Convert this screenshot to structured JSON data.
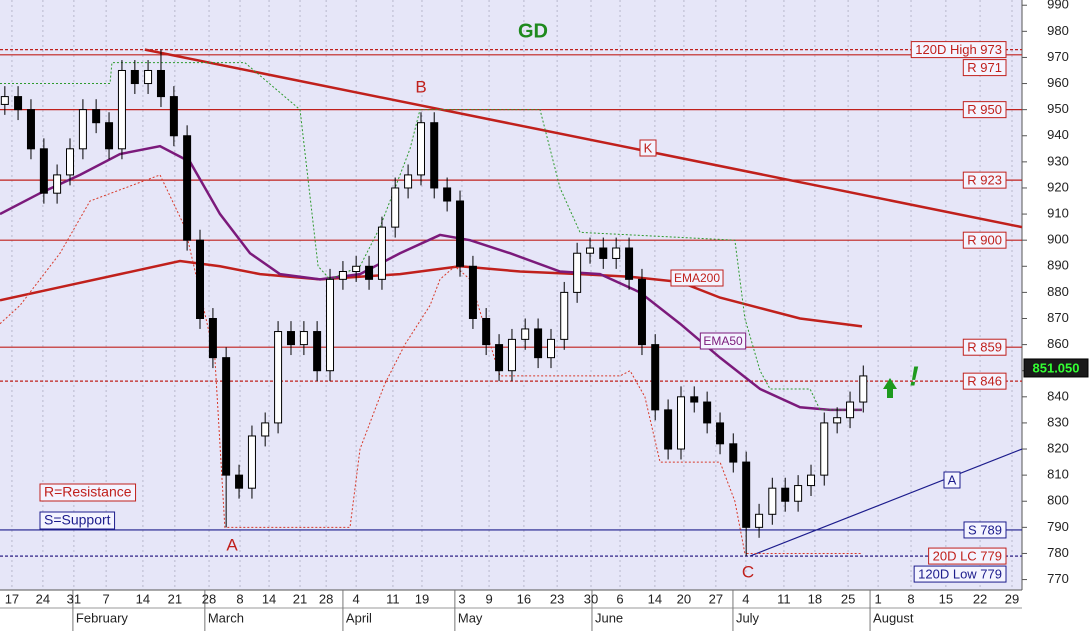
{
  "chart_data": {
    "type": "candlestick",
    "title": "GD",
    "xlim": [
      0,
      31.68
    ],
    "ylim": [
      766,
      992
    ],
    "yticks": [
      770,
      780,
      790,
      800,
      810,
      820,
      830,
      840,
      850,
      860,
      870,
      880,
      890,
      900,
      910,
      920,
      930,
      940,
      950,
      960,
      970,
      980,
      990
    ],
    "xticks": [
      {
        "value": 0.37,
        "label": "17"
      },
      {
        "value": 1.33,
        "label": "24"
      },
      {
        "value": 2.29,
        "label": "31"
      },
      {
        "value": 3.29,
        "label": "7"
      },
      {
        "value": 4.43,
        "label": "14"
      },
      {
        "value": 5.42,
        "label": "21"
      },
      {
        "value": 6.48,
        "label": "28"
      },
      {
        "value": 7.44,
        "label": "8"
      },
      {
        "value": 8.34,
        "label": "14"
      },
      {
        "value": 9.3,
        "label": "21"
      },
      {
        "value": 10.11,
        "label": "28"
      },
      {
        "value": 11.04,
        "label": "4"
      },
      {
        "value": 12.18,
        "label": "11"
      },
      {
        "value": 13.08,
        "label": "19"
      },
      {
        "value": 14.32,
        "label": "3"
      },
      {
        "value": 15.16,
        "label": "9"
      },
      {
        "value": 16.24,
        "label": "16"
      },
      {
        "value": 17.27,
        "label": "23"
      },
      {
        "value": 18.32,
        "label": "30"
      },
      {
        "value": 19.22,
        "label": "6"
      },
      {
        "value": 20.3,
        "label": "14"
      },
      {
        "value": 21.2,
        "label": "20"
      },
      {
        "value": 22.19,
        "label": "27"
      },
      {
        "value": 23.12,
        "label": "4"
      },
      {
        "value": 24.3,
        "label": "11"
      },
      {
        "value": 25.26,
        "label": "18"
      },
      {
        "value": 26.29,
        "label": "25"
      },
      {
        "value": 27.22,
        "label": "1"
      },
      {
        "value": 28.24,
        "label": "8"
      },
      {
        "value": 29.32,
        "label": "15"
      },
      {
        "value": 30.38,
        "label": "22"
      },
      {
        "value": 31.37,
        "label": "29"
      }
    ],
    "months": [
      {
        "value": 2.26,
        "label": "February"
      },
      {
        "value": 6.35,
        "label": "March"
      },
      {
        "value": 10.63,
        "label": "April"
      },
      {
        "value": 14.1,
        "label": "May"
      },
      {
        "value": 18.35,
        "label": "June"
      },
      {
        "value": 22.72,
        "label": "July"
      },
      {
        "value": 26.97,
        "label": "August"
      }
    ],
    "grid": true,
    "up_color": "#ffffff",
    "down_color": "#000000",
    "x": [
      0.15,
      0.56,
      0.96,
      1.36,
      1.77,
      2.17,
      2.57,
      2.98,
      3.38,
      3.78,
      4.18,
      4.59,
      4.99,
      5.39,
      5.8,
      6.2,
      6.6,
      7.01,
      7.41,
      7.81,
      8.22,
      8.62,
      9.02,
      9.42,
      9.83,
      10.23,
      10.63,
      11.04,
      11.44,
      11.84,
      12.25,
      12.65,
      13.05,
      13.46,
      13.86,
      14.26,
      14.66,
      15.07,
      15.47,
      15.87,
      16.28,
      16.68,
      17.08,
      17.49,
      17.89,
      18.29,
      18.7,
      19.1,
      19.5,
      19.9,
      20.31,
      20.71,
      21.11,
      21.52,
      21.92,
      22.32,
      22.73,
      23.13,
      23.53,
      23.94,
      24.34,
      24.74,
      25.14,
      25.55,
      25.95,
      26.35,
      26.76
    ],
    "open": [
      952,
      955,
      950,
      935,
      918,
      925,
      935,
      950,
      945,
      935,
      965,
      960,
      965,
      955,
      940,
      900,
      870,
      855,
      810,
      805,
      825,
      830,
      865,
      860,
      865,
      850,
      885,
      888,
      890,
      885,
      905,
      920,
      925,
      945,
      920,
      915,
      890,
      870,
      860,
      850,
      862,
      866,
      855,
      862,
      880,
      895,
      897,
      893,
      897,
      885,
      860,
      835,
      820,
      840,
      838,
      830,
      822,
      815,
      790,
      795,
      805,
      800,
      806,
      810,
      830,
      832,
      838
    ],
    "high": [
      959,
      959,
      954,
      939,
      929,
      939,
      954,
      954,
      949,
      969,
      969,
      969,
      973,
      959,
      944,
      904,
      874,
      859,
      814,
      829,
      834,
      869,
      869,
      869,
      869,
      889,
      892,
      894,
      894,
      909,
      924,
      929,
      949,
      949,
      924,
      919,
      894,
      874,
      864,
      866,
      870,
      870,
      866,
      884,
      899,
      901,
      901,
      901,
      901,
      889,
      864,
      839,
      844,
      844,
      842,
      834,
      826,
      819,
      799,
      809,
      809,
      810,
      814,
      834,
      836,
      842,
      852
    ],
    "low": [
      948,
      946,
      931,
      914,
      914,
      921,
      931,
      941,
      931,
      931,
      956,
      956,
      951,
      936,
      896,
      866,
      851,
      790,
      801,
      801,
      821,
      826,
      856,
      856,
      846,
      846,
      881,
      884,
      881,
      881,
      901,
      916,
      921,
      916,
      911,
      886,
      866,
      856,
      846,
      846,
      858,
      851,
      851,
      858,
      876,
      891,
      889,
      889,
      881,
      856,
      831,
      816,
      816,
      834,
      826,
      818,
      811,
      779,
      786,
      791,
      796,
      796,
      802,
      806,
      826,
      828,
      834
    ],
    "close": [
      955,
      950,
      935,
      918,
      925,
      935,
      950,
      945,
      935,
      965,
      960,
      965,
      955,
      940,
      900,
      870,
      855,
      810,
      805,
      825,
      830,
      865,
      860,
      865,
      850,
      885,
      888,
      890,
      885,
      905,
      920,
      925,
      945,
      920,
      915,
      890,
      870,
      860,
      850,
      862,
      866,
      855,
      862,
      880,
      895,
      897,
      893,
      897,
      885,
      860,
      835,
      820,
      840,
      838,
      830,
      822,
      815,
      790,
      795,
      805,
      800,
      806,
      810,
      830,
      832,
      838,
      848
    ],
    "lines": [
      {
        "name": "EMA200",
        "color": "#c0201c",
        "dash": false,
        "x": [
          0,
          1.86,
          3.72,
          5.58,
          6.82,
          8.06,
          9.92,
          12.4,
          14.26,
          16.12,
          17.98,
          19.53,
          21.08,
          22.32,
          23.56,
          24.8,
          26.72
        ],
        "values": [
          877,
          882,
          887,
          892,
          890,
          887,
          885,
          887,
          890,
          888,
          887,
          886,
          884,
          878,
          874,
          870,
          867
        ]
      },
      {
        "name": "EMA50",
        "color": "#7b1a7b",
        "dash": false,
        "x": [
          0,
          1.24,
          2.48,
          3.72,
          4.96,
          5.89,
          6.82,
          7.75,
          8.68,
          9.92,
          11.16,
          12.4,
          13.64,
          14.57,
          15.81,
          17.36,
          18.6,
          19.84,
          21.08,
          22.32,
          23.56,
          24.8,
          25.73,
          26.72
        ],
        "values": [
          910,
          918,
          925,
          933,
          936,
          930,
          910,
          895,
          887,
          885,
          887,
          895,
          902,
          900,
          895,
          888,
          887,
          880,
          868,
          855,
          843,
          836,
          835,
          835
        ]
      },
      {
        "color": "#2e9a2e",
        "dash": true,
        "x": [
          0,
          3.41,
          3.47,
          7.59,
          9.3,
          9.86,
          10.23,
          11.16,
          11.78,
          12.71,
          13.02,
          16.74,
          17.36,
          17.98,
          22.78,
          23.09,
          23.56,
          23.87,
          25.11,
          25.42,
          26.72
        ],
        "values": [
          960,
          960,
          968,
          968,
          950,
          890,
          885,
          890,
          905,
          935,
          950,
          950,
          920,
          903,
          900,
          870,
          850,
          843,
          843,
          835,
          835
        ]
      },
      {
        "color": "#d83a2a",
        "dash": true,
        "x": [
          0,
          0.62,
          1.24,
          1.86,
          2.79,
          4.96,
          5.73,
          6.2,
          6.66,
          6.97,
          10.85,
          11.16,
          11.62,
          11.93,
          12.55,
          13.33,
          13.64,
          14.1,
          14.57,
          15.5,
          19.22,
          19.53,
          19.99,
          20.46,
          22.32,
          22.78,
          23.09,
          26.72
        ],
        "values": [
          868,
          875,
          885,
          895,
          915,
          925,
          905,
          880,
          855,
          790,
          790,
          820,
          835,
          845,
          860,
          875,
          885,
          890,
          885,
          848,
          848,
          850,
          840,
          815,
          815,
          800,
          780,
          780
        ]
      }
    ],
    "levels": [
      {
        "value": 973,
        "label": "120D High 973",
        "color": "#c0201c",
        "dash": true
      },
      {
        "value": 971,
        "label": "R 971",
        "color": "#c0201c",
        "dash": false
      },
      {
        "value": 950,
        "label": "R 950",
        "color": "#c0201c",
        "dash": false
      },
      {
        "value": 923,
        "label": "R 923",
        "color": "#c0201c",
        "dash": false
      },
      {
        "value": 900,
        "label": "R 900",
        "color": "#c0201c",
        "dash": false
      },
      {
        "value": 859,
        "label": "R 859",
        "color": "#c0201c",
        "dash": false
      },
      {
        "value": 846,
        "label": "R 846",
        "color": "#c0201c",
        "dash": true
      },
      {
        "value": 789,
        "label": "S 789",
        "color": "#1c1c8c",
        "dash": false
      },
      {
        "value": 779,
        "label": "20D LC 779",
        "color": "#c0201c",
        "dash": true
      },
      {
        "value": 779,
        "label": "120D Low 779",
        "color": "#1c1c8c",
        "dash": true
      }
    ],
    "trendlines": [
      {
        "label": "K",
        "color": "#c0201c",
        "x": [
          4.49,
          31.68
        ],
        "values": [
          973,
          905
        ]
      },
      {
        "label": "A",
        "color": "#1c1c8c",
        "x": [
          23.25,
          31.68
        ],
        "values": [
          779,
          820
        ]
      }
    ],
    "point_labels": [
      "B",
      "A",
      "C"
    ],
    "notes": [
      "R=Resistance",
      "S=Support"
    ],
    "signal": "!",
    "last_price": {
      "value": 851.05,
      "label": "851.050"
    }
  }
}
